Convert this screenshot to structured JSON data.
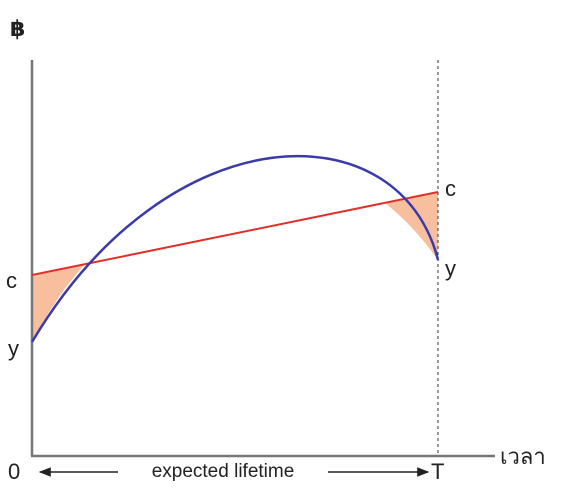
{
  "axes": {
    "y_label": "฿",
    "x_label": "เวลา",
    "origin": "0",
    "end": "T",
    "span_label": "expected lifetime"
  },
  "curves": {
    "consumption_start": "c",
    "income_start": "y",
    "consumption_end": "c",
    "income_end": "y"
  }
}
